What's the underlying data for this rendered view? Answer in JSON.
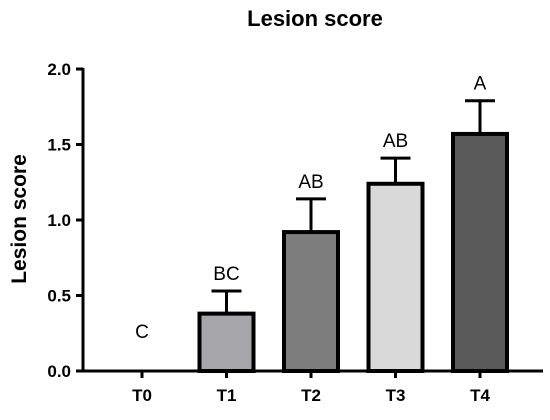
{
  "chart_data": {
    "type": "bar",
    "title": "Lesion score",
    "xlabel": "",
    "ylabel": "Lesion score",
    "ylim": [
      0,
      2.0
    ],
    "yticks": [
      0.0,
      0.5,
      1.0,
      1.5,
      2.0
    ],
    "ytick_labels": [
      "0.0",
      "0.5",
      "1.0",
      "1.5",
      "2.0"
    ],
    "grid": false,
    "categories": [
      "T0",
      "T1",
      "T2",
      "T3",
      "T4"
    ],
    "values": [
      0.0,
      0.38,
      0.92,
      1.24,
      1.57
    ],
    "errors": [
      0.0,
      0.15,
      0.22,
      0.17,
      0.22
    ],
    "significance_labels": [
      "C",
      "BC",
      "AB",
      "AB",
      "A"
    ],
    "bar_colors": [
      "#ffffff",
      "#a5a5aa",
      "#7d7d7d",
      "#d9d9d9",
      "#5a5a5a"
    ],
    "edge_color": "#000000"
  }
}
